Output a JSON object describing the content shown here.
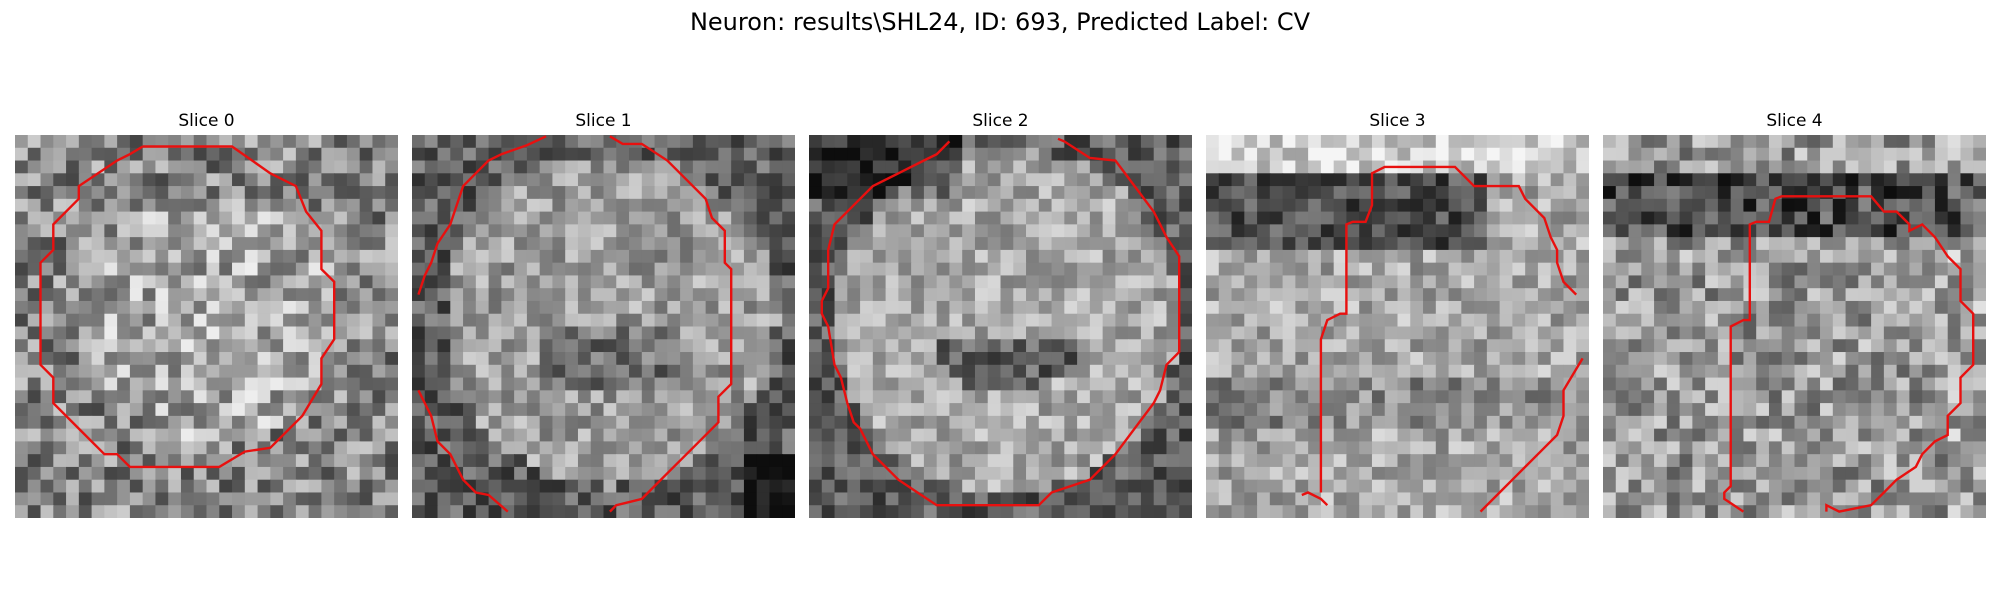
{
  "figure": {
    "title": "Neuron: results\\SHL24, ID: 693, Predicted Label: CV"
  },
  "style": {
    "contour_color": "#e8100f"
  },
  "panels": [
    {
      "title": "Slice 0"
    },
    {
      "title": "Slice 1"
    },
    {
      "title": "Slice 2"
    },
    {
      "title": "Slice 3"
    },
    {
      "title": "Slice 4"
    }
  ]
}
